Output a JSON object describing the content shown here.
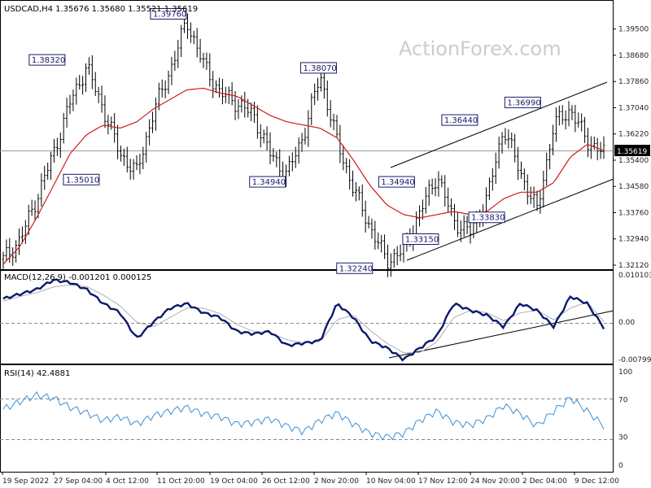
{
  "main_header": "USDCAD,H4  1.35676 1.35680 1.35521 1.35619",
  "macd_header": "MACD(12,26,9) -0.001201 0.000125",
  "rsi_header": "RSI(14) 42.4881",
  "watermark": "ActionForex.com",
  "last_price_label": "1.35619",
  "colors": {
    "price_bar": "#000000",
    "ma": "#d11a1a",
    "macd": "#0b1a6b",
    "signal": "#b0b0b0",
    "rsi": "#3a8fd6",
    "trendline": "#000000",
    "grid_dash": "#888888"
  },
  "chart_data": [
    {
      "type": "bar",
      "panel": "price",
      "ylim": [
        1.3212,
        1.3995
      ],
      "yticks": [
        "1.39500",
        "1.38680",
        "1.37860",
        "1.37040",
        "1.36220",
        "1.35400",
        "1.34580",
        "1.33760",
        "1.32940",
        "1.32120"
      ],
      "xticks": [
        "19 Sep 2022",
        "27 Sep 04:00",
        "4 Oct 12:00",
        "11 Oct 20:00",
        "19 Oct 04:00",
        "26 Oct 12:00",
        "2 Nov 20:00",
        "10 Nov 04:00",
        "17 Nov 12:00",
        "24 Nov 20:00",
        "2 Dec 04:00",
        "9 Dec 12:00"
      ],
      "annotations": [
        {
          "text": "1.38320",
          "x": "26 Sep",
          "y": 1.3832
        },
        {
          "text": "1.35010",
          "x": "30 Sep",
          "y": 1.3501
        },
        {
          "text": "1.39760",
          "x": "13 Oct",
          "y": 1.3976
        },
        {
          "text": "1.38070",
          "x": "1 Nov",
          "y": 1.3807
        },
        {
          "text": "1.34940",
          "x": "27 Oct",
          "y": 1.3494
        },
        {
          "text": "1.32240",
          "x": "15 Nov",
          "y": 1.3224
        },
        {
          "text": "1.34940",
          "x": "21 Nov",
          "y": 1.3494
        },
        {
          "text": "1.33150",
          "x": "24 Nov",
          "y": 1.3315
        },
        {
          "text": "1.36440",
          "x": "28 Nov",
          "y": 1.3644
        },
        {
          "text": "1.33830",
          "x": "1 Dec",
          "y": 1.3383
        },
        {
          "text": "1.36990",
          "x": "6 Dec",
          "y": 1.3699
        }
      ],
      "series": [
        {
          "name": "",
          "style": "ohlc",
          "values_path": [
            1.323,
            1.329,
            1.342,
            1.356,
            1.372,
            1.3832,
            1.37,
            1.356,
            1.3501,
            1.369,
            1.382,
            1.3976,
            1.384,
            1.375,
            1.372,
            1.368,
            1.356,
            1.3494,
            1.362,
            1.3807,
            1.36,
            1.345,
            1.333,
            1.3224,
            1.326,
            1.338,
            1.3494,
            1.335,
            1.3315,
            1.342,
            1.3644,
            1.35,
            1.3383,
            1.365,
            1.3699,
            1.36,
            1.3562
          ]
        },
        {
          "name": "",
          "style": "line",
          "values_path": [
            1.3215,
            1.327,
            1.336,
            1.346,
            1.356,
            1.362,
            1.365,
            1.364,
            1.366,
            1.37,
            1.373,
            1.376,
            1.3765,
            1.375,
            1.374,
            1.371,
            1.368,
            1.366,
            1.365,
            1.364,
            1.361,
            1.354,
            1.346,
            1.34,
            1.337,
            1.336,
            1.337,
            1.338,
            1.337,
            1.338,
            1.342,
            1.344,
            1.344,
            1.347,
            1.355,
            1.359,
            1.357
          ]
        }
      ]
    },
    {
      "type": "line",
      "panel": "macd",
      "ylim": [
        -0.007998,
        0.010103
      ],
      "yticks": [
        "0.010103",
        "0.00",
        "-0.007998"
      ],
      "series": [
        {
          "name": "",
          "values": [
            0.005,
            0.006,
            0.007,
            0.009,
            0.0085,
            0.007,
            0.004,
            0.002,
            -0.0035,
            0.0,
            0.003,
            0.004,
            0.002,
            0.001,
            -0.002,
            -0.0025,
            -0.002,
            -0.005,
            -0.0045,
            -0.004,
            0.004,
            0.001,
            -0.004,
            -0.0055,
            -0.008,
            -0.0055,
            -0.003,
            0.004,
            0.0025,
            0.0015,
            -0.001,
            0.004,
            0.0025,
            -0.001,
            0.0055,
            0.004,
            -0.0012
          ]
        },
        {
          "name": "",
          "values": [
            0.0045,
            0.0055,
            0.0063,
            0.0075,
            0.008,
            0.0076,
            0.0058,
            0.0035,
            0.0,
            -0.001,
            0.001,
            0.003,
            0.003,
            0.0018,
            -0.0005,
            -0.002,
            -0.0022,
            -0.0038,
            -0.0044,
            -0.0042,
            0.0005,
            0.0015,
            -0.0018,
            -0.0045,
            -0.0066,
            -0.0065,
            -0.0042,
            0.001,
            0.0025,
            0.002,
            0.0003,
            0.002,
            0.0025,
            0.0005,
            0.003,
            0.0043,
            0.0001
          ]
        }
      ]
    },
    {
      "type": "line",
      "panel": "rsi",
      "ylim": [
        0,
        100
      ],
      "yticks": [
        "100",
        "70",
        "30",
        "0"
      ],
      "series": [
        {
          "name": "",
          "values": [
            60,
            68,
            75,
            72,
            62,
            56,
            48,
            52,
            44,
            53,
            58,
            62,
            55,
            52,
            44,
            46,
            50,
            42,
            36,
            48,
            56,
            44,
            34,
            30,
            34,
            48,
            58,
            46,
            43,
            50,
            64,
            55,
            42,
            58,
            72,
            58,
            42
          ]
        }
      ]
    }
  ]
}
